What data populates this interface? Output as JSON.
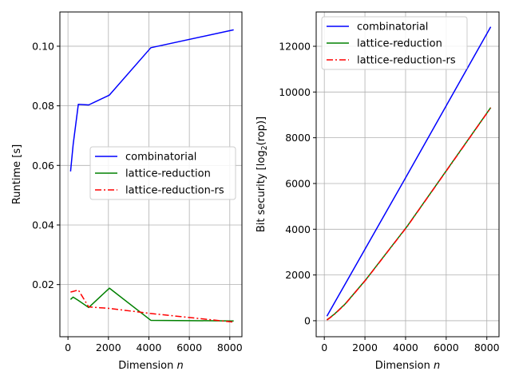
{
  "chart_data": [
    {
      "type": "line",
      "xlabel": "Dimension",
      "xlabel_var": "n",
      "ylabel": "Runtime [s]",
      "xlim": [
        -400,
        8600
      ],
      "ylim": [
        0.0025,
        0.1115
      ],
      "xticks": [
        0,
        2000,
        4000,
        6000,
        8000
      ],
      "yticks": [
        0.02,
        0.04,
        0.06,
        0.08,
        0.1
      ],
      "ytick_labels": [
        "0.02",
        "0.04",
        "0.06",
        "0.08",
        "0.10"
      ],
      "grid": true,
      "legend_position": "center-right",
      "series": [
        {
          "name": "combinatorial",
          "color": "#0000ff",
          "dash": "solid",
          "x": [
            128,
            256,
            512,
            1024,
            2048,
            4096,
            8192
          ],
          "y": [
            0.058,
            0.067,
            0.0805,
            0.0803,
            0.0836,
            0.0995,
            0.1055
          ]
        },
        {
          "name": "lattice-reduction",
          "color": "#008000",
          "dash": "solid",
          "x": [
            128,
            256,
            512,
            1024,
            2048,
            4096,
            8192
          ],
          "y": [
            0.015,
            0.0158,
            0.0147,
            0.0123,
            0.0188,
            0.008,
            0.0078
          ]
        },
        {
          "name": "lattice-reduction-rs",
          "color": "#ff0000",
          "dash": "dashdot",
          "x": [
            128,
            256,
            512,
            1024,
            2048,
            4096,
            8192
          ],
          "y": [
            0.0175,
            0.0177,
            0.0182,
            0.0125,
            0.012,
            0.0103,
            0.0074
          ]
        }
      ]
    },
    {
      "type": "line",
      "xlabel": "Dimension",
      "xlabel_var": "n",
      "ylabel_prefix": "Bit security [log",
      "ylabel_sub": "2",
      "ylabel_suffix": "(rop)]",
      "xlim": [
        -400,
        8600
      ],
      "ylim": [
        -700,
        13500
      ],
      "xticks": [
        0,
        2000,
        4000,
        6000,
        8000
      ],
      "yticks": [
        0,
        2000,
        4000,
        6000,
        8000,
        10000,
        12000
      ],
      "ytick_labels": [
        "0",
        "2000",
        "4000",
        "6000",
        "8000",
        "10000",
        "12000"
      ],
      "grid": true,
      "legend_position": "top-left",
      "series": [
        {
          "name": "combinatorial",
          "color": "#0000ff",
          "dash": "solid",
          "x": [
            128,
            256,
            512,
            1024,
            2048,
            4096,
            8192
          ],
          "y": [
            200,
            400,
            800,
            1600,
            3200,
            6400,
            12850
          ]
        },
        {
          "name": "lattice-reduction",
          "color": "#008000",
          "dash": "solid",
          "x": [
            128,
            256,
            512,
            1024,
            2048,
            4096,
            8192
          ],
          "y": [
            40,
            120,
            300,
            730,
            1800,
            4150,
            9320
          ]
        },
        {
          "name": "lattice-reduction-rs",
          "color": "#ff0000",
          "dash": "dashdot",
          "x": [
            128,
            256,
            512,
            1024,
            2048,
            4096,
            8192
          ],
          "y": [
            30,
            110,
            290,
            720,
            1790,
            4140,
            9310
          ]
        }
      ]
    }
  ]
}
